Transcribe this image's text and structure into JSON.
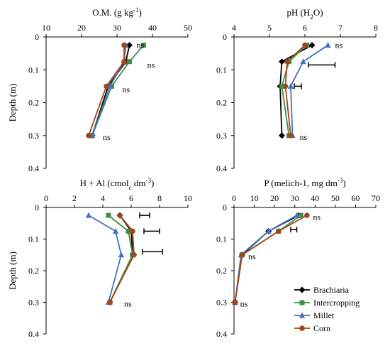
{
  "colors": {
    "Brachiaria": "#000000",
    "Intercropping": "#3e8e48",
    "Millet": "#4472c4",
    "Corn": "#a0461b"
  },
  "markers": {
    "Brachiaria": "diamond",
    "Intercropping": "square",
    "Millet": "triangle",
    "Corn": "circle"
  },
  "legend": [
    "Brachiaria",
    "Intercropping",
    "Millet",
    "Corn"
  ],
  "chart_data": [
    {
      "type": "line",
      "title": "O.M. (g kg",
      "title_sup": "-1",
      "title_tail": ")",
      "ylabel": "Depth (m)",
      "xlim": [
        10,
        50
      ],
      "ylim": [
        0,
        0.4
      ],
      "xticks": [
        "10",
        "20",
        "30",
        "40",
        "50"
      ],
      "yticks": [
        "0",
        "0.1",
        "0.2",
        "0.3",
        "0.4"
      ],
      "depths": [
        0.025,
        0.075,
        0.15,
        0.3
      ],
      "series": [
        {
          "name": "Brachiaria",
          "x": [
            33.5,
            32.5,
            27.5,
            23
          ]
        },
        {
          "name": "Intercropping",
          "x": [
            37.5,
            33.5,
            28.5,
            23
          ]
        },
        {
          "name": "Millet",
          "x": [
            32.5,
            32.0,
            28.0,
            23
          ]
        },
        {
          "name": "Corn",
          "x": [
            32.0,
            32.0,
            27.0,
            22
          ]
        }
      ],
      "annotations": [
        {
          "text": "ns",
          "x": 35.5,
          "y": 0.025
        },
        {
          "text": "ns",
          "x": 38.5,
          "y": 0.085
        },
        {
          "text": "ns",
          "x": 31.5,
          "y": 0.16
        },
        {
          "text": "ns",
          "x": 26.0,
          "y": 0.305
        }
      ],
      "errorbars": []
    },
    {
      "type": "line",
      "title": "pH (H",
      "title_sub": "2",
      "title_tail": "O)",
      "ylabel": "",
      "xlim": [
        4,
        8
      ],
      "ylim": [
        0,
        0.4
      ],
      "xticks": [
        "4",
        "5",
        "6",
        "7",
        "8"
      ],
      "yticks": [
        "0",
        "0.1",
        "0.2",
        "0.3",
        "0.4"
      ],
      "depths": [
        0.025,
        0.075,
        0.15,
        0.3
      ],
      "series": [
        {
          "name": "Brachiaria",
          "x": [
            6.2,
            5.35,
            5.3,
            5.35
          ]
        },
        {
          "name": "Intercropping",
          "x": [
            6.05,
            5.55,
            5.35,
            5.55
          ]
        },
        {
          "name": "Millet",
          "x": [
            6.65,
            5.95,
            5.6,
            5.65
          ]
        },
        {
          "name": "Corn",
          "x": [
            6.0,
            5.5,
            5.45,
            5.6
          ]
        }
      ],
      "annotations": [
        {
          "text": "ns",
          "x": 6.85,
          "y": 0.025
        },
        {
          "text": "ns",
          "x": 5.85,
          "y": 0.305
        }
      ],
      "errorbars": [
        {
          "x0": 6.1,
          "x1": 6.85,
          "y": 0.085
        },
        {
          "x0": 5.7,
          "x1": 5.9,
          "y": 0.15
        }
      ]
    },
    {
      "type": "line",
      "title": "H + Al (cmol",
      "title_sub": "c",
      "title_tail": " dm",
      "title_sup": "-3",
      "title_tail2": ")",
      "ylabel": "Depth (m)",
      "xlim": [
        0,
        10
      ],
      "ylim": [
        0,
        0.4
      ],
      "xticks": [
        "0",
        "2",
        "4",
        "6",
        "8",
        "10"
      ],
      "yticks": [
        "0",
        "0.1",
        "0.2",
        "0.3",
        "0.4"
      ],
      "depths": [
        0.025,
        0.075,
        0.15,
        0.3
      ],
      "series": [
        {
          "name": "Brachiaria",
          "x": [
            5.2,
            6.0,
            6.1,
            4.5
          ]
        },
        {
          "name": "Intercropping",
          "x": [
            4.4,
            5.8,
            6.1,
            4.5
          ]
        },
        {
          "name": "Millet",
          "x": [
            3.0,
            4.9,
            5.3,
            4.4
          ]
        },
        {
          "name": "Corn",
          "x": [
            5.2,
            6.1,
            6.2,
            4.5
          ]
        }
      ],
      "annotations": [
        {
          "text": "ns",
          "x": 5.5,
          "y": 0.305
        }
      ],
      "errorbars": [
        {
          "x0": 6.6,
          "x1": 7.3,
          "y": 0.025
        },
        {
          "x0": 6.9,
          "x1": 8.0,
          "y": 0.075
        },
        {
          "x0": 6.8,
          "x1": 8.2,
          "y": 0.14
        }
      ]
    },
    {
      "type": "line",
      "title": "P (melich-1, mg dm",
      "title_sup": "-3",
      "title_tail": ")",
      "ylabel": "",
      "xlim": [
        0,
        70
      ],
      "ylim": [
        0,
        0.4
      ],
      "xticks": [
        "0",
        "10",
        "20",
        "30",
        "40",
        "50",
        "60",
        "70"
      ],
      "yticks": [
        "0",
        "0.1",
        "0.2",
        "0.3",
        "0.4"
      ],
      "depths": [
        0.025,
        0.075,
        0.15,
        0.3
      ],
      "series": [
        {
          "name": "Brachiaria",
          "x": [
            32,
            17,
            4,
            0.5
          ]
        },
        {
          "name": "Intercropping",
          "x": [
            33,
            22,
            4,
            0.5
          ]
        },
        {
          "name": "Millet",
          "x": [
            31,
            17,
            3.5,
            0.5
          ]
        },
        {
          "name": "Corn",
          "x": [
            36,
            22,
            4,
            0.5
          ]
        }
      ],
      "annotations": [
        {
          "text": "ns",
          "x": 39,
          "y": 0.03
        },
        {
          "text": "ns",
          "x": 7,
          "y": 0.155
        },
        {
          "text": "ns",
          "x": 3,
          "y": 0.305
        }
      ],
      "errorbars": [
        {
          "x0": 28,
          "x1": 31,
          "y": 0.07
        }
      ]
    }
  ]
}
